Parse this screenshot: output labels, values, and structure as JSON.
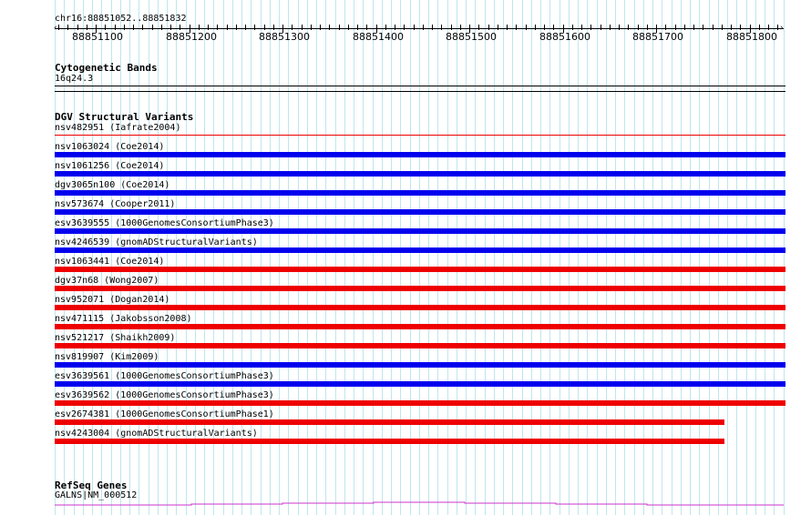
{
  "location": "chr16:88851052..88851832",
  "ruler": {
    "labels": [
      "88851100",
      "88851200",
      "88851300",
      "88851400",
      "88851500",
      "88851600",
      "88851700",
      "88851800"
    ]
  },
  "cytobands": {
    "title": "Cytogenetic Bands",
    "band": "16q24.3"
  },
  "dgv": {
    "title": "DGV Structural Variants",
    "colors": {
      "gain": "#0000ee",
      "loss": "#ee0000"
    },
    "variants": [
      {
        "label": "nsv482951 (Iafrate2004)",
        "type": "thin-red"
      },
      {
        "label": "nsv1063024 (Coe2014)",
        "type": "gain"
      },
      {
        "label": "nsv1061256 (Coe2014)",
        "type": "gain"
      },
      {
        "label": "dgv3065n100 (Coe2014)",
        "type": "gain"
      },
      {
        "label": "nsv573674 (Cooper2011)",
        "type": "gain"
      },
      {
        "label": "esv3639555 (1000GenomesConsortiumPhase3)",
        "type": "gain"
      },
      {
        "label": "nsv4246539 (gnomADStructuralVariants)",
        "type": "gain"
      },
      {
        "label": "nsv1063441 (Coe2014)",
        "type": "loss"
      },
      {
        "label": "dgv37n68 (Wong2007)",
        "type": "loss"
      },
      {
        "label": "nsv952071 (Dogan2014)",
        "type": "loss"
      },
      {
        "label": "nsv471115 (Jakobsson2008)",
        "type": "loss"
      },
      {
        "label": "nsv521217 (Shaikh2009)",
        "type": "loss"
      },
      {
        "label": "nsv819907 (Kim2009)",
        "type": "gain"
      },
      {
        "label": "esv3639561 (1000GenomesConsortiumPhase3)",
        "type": "gain"
      },
      {
        "label": "esv3639562 (1000GenomesConsortiumPhase3)",
        "type": "loss"
      },
      {
        "label": "esv2674381 (1000GenomesConsortiumPhase1)",
        "type": "loss",
        "partial": true
      },
      {
        "label": "nsv4243004 (gnomADStructuralVariants)",
        "type": "loss",
        "partial": true
      }
    ]
  },
  "refseq": {
    "title": "RefSeq Genes",
    "gene": "GALNS|NM_000512",
    "color": "#cc33cc"
  }
}
